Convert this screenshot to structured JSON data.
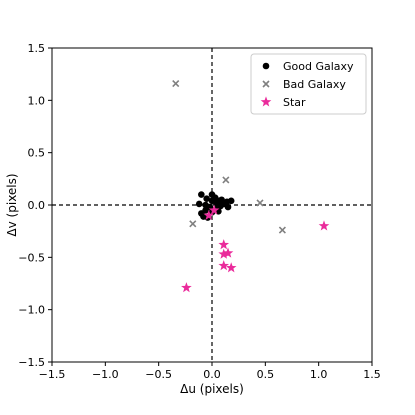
{
  "chart_data": {
    "type": "scatter",
    "title": "",
    "xlabel": "Δu (pixels)",
    "ylabel": "Δv (pixels)",
    "xlim": [
      -1.5,
      1.5
    ],
    "ylim": [
      -1.5,
      1.5
    ],
    "xticks": [
      "−1.5",
      "−1.0",
      "−0.5",
      "0.0",
      "0.5",
      "1.0",
      "1.5"
    ],
    "yticks": [
      "−1.5",
      "−1.0",
      "−0.5",
      "0.0",
      "0.5",
      "1.0",
      "1.5"
    ],
    "xtick_values": [
      -1.5,
      -1.0,
      -0.5,
      0.0,
      0.5,
      1.0,
      1.5
    ],
    "ytick_values": [
      -1.5,
      -1.0,
      -0.5,
      0.0,
      0.5,
      1.0,
      1.5
    ],
    "grid": false,
    "reference_lines": {
      "x": 0,
      "y": 0,
      "style": "dashed",
      "color": "#000000"
    },
    "legend_position": "top-right",
    "series": [
      {
        "name": "Good Galaxy",
        "marker": "circle",
        "color": "#000000",
        "points": [
          [
            -0.1,
            0.1
          ],
          [
            -0.05,
            0.06
          ],
          [
            0.0,
            0.1
          ],
          [
            0.03,
            0.07
          ],
          [
            0.06,
            0.04
          ],
          [
            0.1,
            0.02
          ],
          [
            0.14,
            0.03
          ],
          [
            0.18,
            0.04
          ],
          [
            0.12,
            0.01
          ],
          [
            0.08,
            -0.01
          ],
          [
            0.04,
            -0.04
          ],
          [
            -0.02,
            -0.02
          ],
          [
            -0.06,
            -0.05
          ],
          [
            -0.1,
            -0.08
          ],
          [
            -0.08,
            -0.11
          ],
          [
            -0.04,
            -0.12
          ],
          [
            0.02,
            -0.05
          ],
          [
            -0.12,
            0.01
          ],
          [
            0.0,
            0.04
          ],
          [
            0.04,
            0.02
          ],
          [
            0.09,
            0.05
          ],
          [
            0.15,
            -0.02
          ],
          [
            0.0,
            -0.07
          ],
          [
            -0.06,
            0.0
          ],
          [
            0.06,
            -0.06
          ]
        ]
      },
      {
        "name": "Bad Galaxy",
        "marker": "x",
        "color": "#808080",
        "points": [
          [
            -0.34,
            1.16
          ],
          [
            0.13,
            0.24
          ],
          [
            0.45,
            0.02
          ],
          [
            0.66,
            -0.24
          ],
          [
            -0.18,
            -0.18
          ]
        ]
      },
      {
        "name": "Star",
        "marker": "star",
        "color": "#ea2b9b",
        "points": [
          [
            1.05,
            -0.2
          ],
          [
            0.11,
            -0.38
          ],
          [
            0.11,
            -0.47
          ],
          [
            0.15,
            -0.46
          ],
          [
            0.18,
            -0.6
          ],
          [
            0.11,
            -0.58
          ],
          [
            -0.24,
            -0.79
          ],
          [
            -0.03,
            -0.1
          ],
          [
            0.02,
            -0.05
          ]
        ]
      }
    ]
  }
}
